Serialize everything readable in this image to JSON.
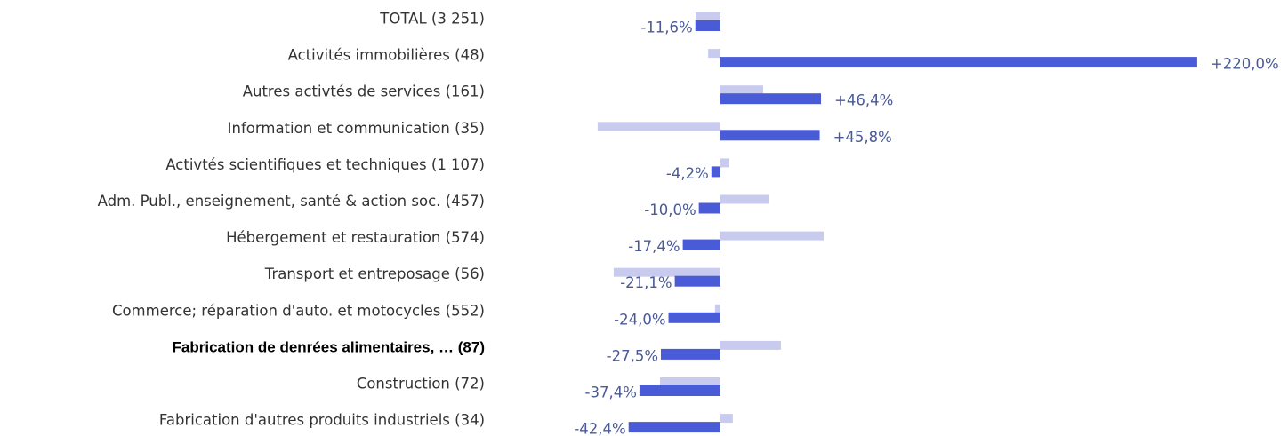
{
  "chart_data": {
    "type": "hbar",
    "categories": [
      "TOTAL (3 251)",
      "Activités immobilières (48)",
      "Autres activtés de services (161)",
      "Information et communication (35)",
      "Activtés scientifiques et techniques (1 107)",
      "Adm. Publ., enseignement, santé & action soc. (457)",
      "Hébergement et restauration (574)",
      "Transport et entreposage (56)",
      "Commerce; réparation d'auto. et motocycles (552)",
      "Fabrication de denrées alimentaires, … (87)",
      "Construction (72)",
      "Fabrication d'autres produits industriels (34)"
    ],
    "highlight_index": 9,
    "series": [
      {
        "color": "#c9cbee",
        "values": [
          -11.5,
          -5.7,
          19.7,
          -56.7,
          4.1,
          22.2,
          47.6,
          -49.3,
          -2.5,
          27.9,
          -27.9,
          5.7
        ]
      },
      {
        "color": "#4a5bd8",
        "values": [
          -11.6,
          220.0,
          46.4,
          45.8,
          -4.2,
          -10.0,
          -17.4,
          -21.1,
          -24.0,
          -27.5,
          -37.4,
          -42.4
        ],
        "value_labels": [
          "-11,6%",
          "+220,0%",
          "+46,4%",
          "+45,8%",
          "-4,2%",
          "-10,0%",
          "-17,4%",
          "-21,1%",
          "-24,0%",
          "-27,5%",
          "-37,4%",
          "-42,4%"
        ]
      }
    ]
  }
}
